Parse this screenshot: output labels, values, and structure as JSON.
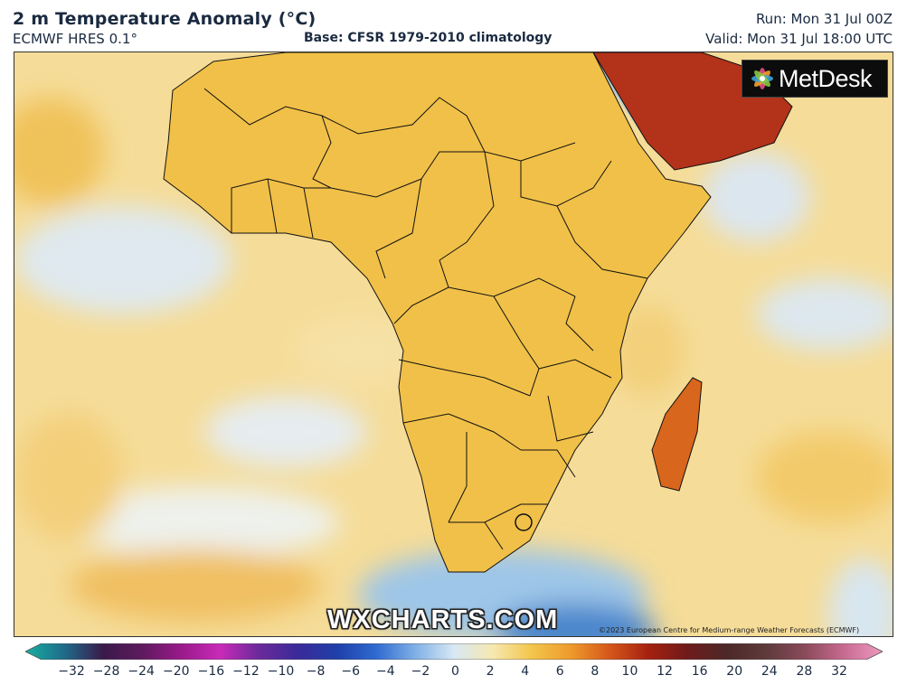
{
  "header": {
    "title": "2 m Temperature Anomaly (°C)",
    "model": "ECMWF HRES 0.1°",
    "base": "Base: CFSR 1979-2010 climatology",
    "run": "Run: Mon 31 Jul 00Z",
    "valid": "Valid: Mon 31 Jul 18:00 UTC"
  },
  "map": {
    "region": "Africa",
    "watermark": "WXCHARTS.COM",
    "copyright": "©2023 European Centre for Medium-range Weather Forecasts (ECMWF)",
    "logo_text": "MetDesk"
  },
  "colorbar": {
    "ticks": [
      "−32",
      "−28",
      "−24",
      "−20",
      "−16",
      "−12",
      "−10",
      "−8",
      "−6",
      "−4",
      "−2",
      "0",
      "2",
      "4",
      "6",
      "8",
      "10",
      "12",
      "16",
      "20",
      "24",
      "28",
      "32"
    ],
    "colors": [
      "#16b0a0",
      "#1f6b8a",
      "#3a1a4a",
      "#5e1a5e",
      "#9a1a8a",
      "#c82ab8",
      "#6a2a9a",
      "#3a2a9a",
      "#1f3fa8",
      "#2f6ad0",
      "#7fb0e6",
      "#d8e8f4",
      "#f6e8b0",
      "#f3c54a",
      "#ee9a2c",
      "#d5571a",
      "#a52010",
      "#6e1b1b",
      "#4d2828",
      "#5e3a3a",
      "#8a4a5a",
      "#c86a90",
      "#ee9ac0"
    ]
  }
}
